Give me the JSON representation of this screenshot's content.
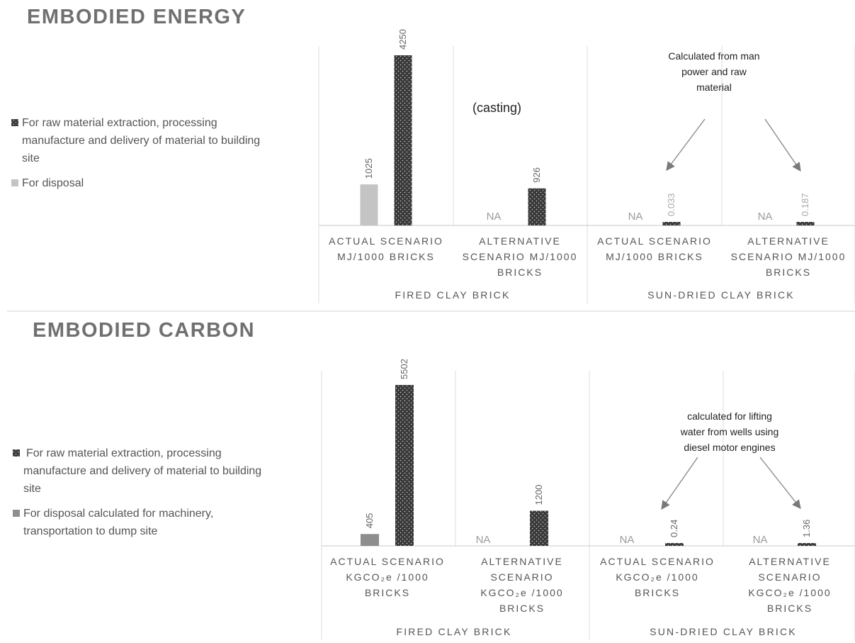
{
  "chart_data": [
    {
      "type": "bar",
      "title": "EMBODIED ENERGY",
      "series": [
        {
          "name": "For raw material extraction, processing manufacture and delivery of material to building site",
          "legend_lines": [
            "For raw material extraction, processing",
            "manufacture and delivery of material to building",
            "site"
          ],
          "color": "#3a3a3a",
          "pattern": "dotted",
          "values": [
            4250,
            926,
            0.033,
            0.187
          ],
          "labels": [
            "4250",
            "926",
            "0.033",
            "0.187"
          ]
        },
        {
          "name": "For disposal",
          "legend_lines": [
            "For disposal"
          ],
          "color": "#c4c4c4",
          "pattern": "solid",
          "values": [
            1025,
            null,
            null,
            null
          ],
          "labels": [
            "1025",
            "NA",
            "NA",
            "NA"
          ]
        }
      ],
      "categories": [
        {
          "lines": [
            "ACTUAL SCENARIO",
            "MJ/1000 BRICKS"
          ]
        },
        {
          "lines": [
            "ALTERNATIVE",
            "SCENARIO MJ/1000",
            "BRICKS"
          ]
        },
        {
          "lines": [
            "ACTUAL SCENARIO",
            "MJ/1000 BRICKS"
          ]
        },
        {
          "lines": [
            "ALTERNATIVE",
            "SCENARIO MJ/1000",
            "BRICKS"
          ]
        }
      ],
      "groups": [
        "FIRED CLAY BRICK",
        "SUN-DRIED CLAY BRICK"
      ],
      "ylim": [
        0,
        4250
      ],
      "grid": false,
      "legend_position": "left",
      "annotations": {
        "casting": "(casting)",
        "note_lines": [
          "Calculated  from man",
          "power and raw",
          "material"
        ]
      }
    },
    {
      "type": "bar",
      "title": "EMBODIED CARBON",
      "series": [
        {
          "name": "For raw material extraction, processing manufacture and delivery of material to building site",
          "legend_lines": [
            "For raw material extraction, processing",
            "manufacture and delivery of material to building",
            "site"
          ],
          "color": "#3a3a3a",
          "pattern": "dotted",
          "values": [
            5502,
            1200,
            0.24,
            1.36
          ],
          "labels": [
            "5502",
            "1200",
            "0.24",
            "1.36"
          ]
        },
        {
          "name": "For disposal  calculated for machinery, transportation to dump site",
          "legend_lines": [
            "For disposal  calculated for machinery,",
            "transportation to dump site"
          ],
          "color": "#8e8e8e",
          "pattern": "solid",
          "values": [
            405,
            null,
            null,
            null
          ],
          "labels": [
            "405",
            "NA",
            "NA",
            "NA"
          ]
        }
      ],
      "categories": [
        {
          "lines": [
            "ACTUAL SCENARIO",
            "KGCO₂e /1000",
            "BRICKS"
          ]
        },
        {
          "lines": [
            "ALTERNATIVE",
            "SCENARIO",
            "KGCO₂e /1000",
            "BRICKS"
          ]
        },
        {
          "lines": [
            "ACTUAL SCENARIO",
            "KGCO₂e /1000",
            "BRICKS"
          ]
        },
        {
          "lines": [
            "ALTERNATIVE",
            "SCENARIO",
            "KGCO₂e /1000",
            "BRICKS"
          ]
        }
      ],
      "groups": [
        "FIRED CLAY BRICK",
        "SUN-DRIED CLAY BRICK"
      ],
      "ylim": [
        0,
        5502
      ],
      "grid": false,
      "legend_position": "left",
      "annotations": {
        "note_lines": [
          "calculated for lifting",
          "water from wells using",
          "diesel motor engines"
        ]
      }
    }
  ]
}
